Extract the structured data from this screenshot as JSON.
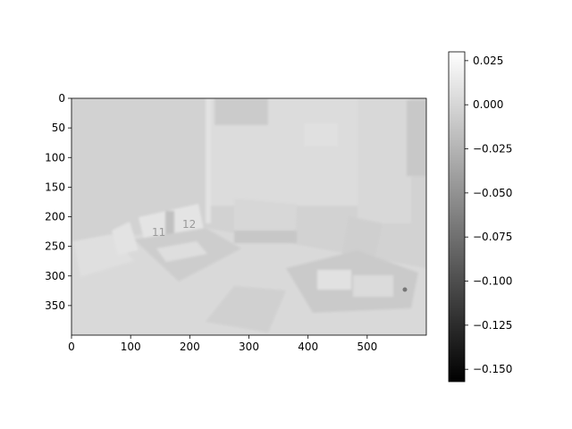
{
  "chart_data": {
    "type": "heatmap",
    "title": "",
    "xlabel": "",
    "ylabel": "",
    "image_extent": {
      "x": [
        0,
        600
      ],
      "y": [
        400,
        0
      ]
    },
    "y_inverted": true,
    "xticks": [
      0,
      100,
      200,
      300,
      400,
      500
    ],
    "yticks": [
      0,
      50,
      100,
      150,
      200,
      250,
      300,
      350
    ],
    "colormap": "gray",
    "colorbar": {
      "vmin": -0.157,
      "vmax": 0.03,
      "ticks": [
        0.025,
        0.0,
        -0.025,
        -0.05,
        -0.075,
        -0.1,
        -0.125,
        -0.15
      ],
      "tick_labels": [
        "0.025",
        "0.000",
        "−0.025",
        "−0.050",
        "−0.075",
        "−0.100",
        "−0.125",
        "−0.150"
      ]
    },
    "image_description": "Grayscale residual map of an indoor scene: a desk with an open flip calendar showing 11 and 12, keyboard, chairs and a table; values mostly near 0 (light gray).",
    "background_color": "#d4d4d4",
    "grid": false
  }
}
